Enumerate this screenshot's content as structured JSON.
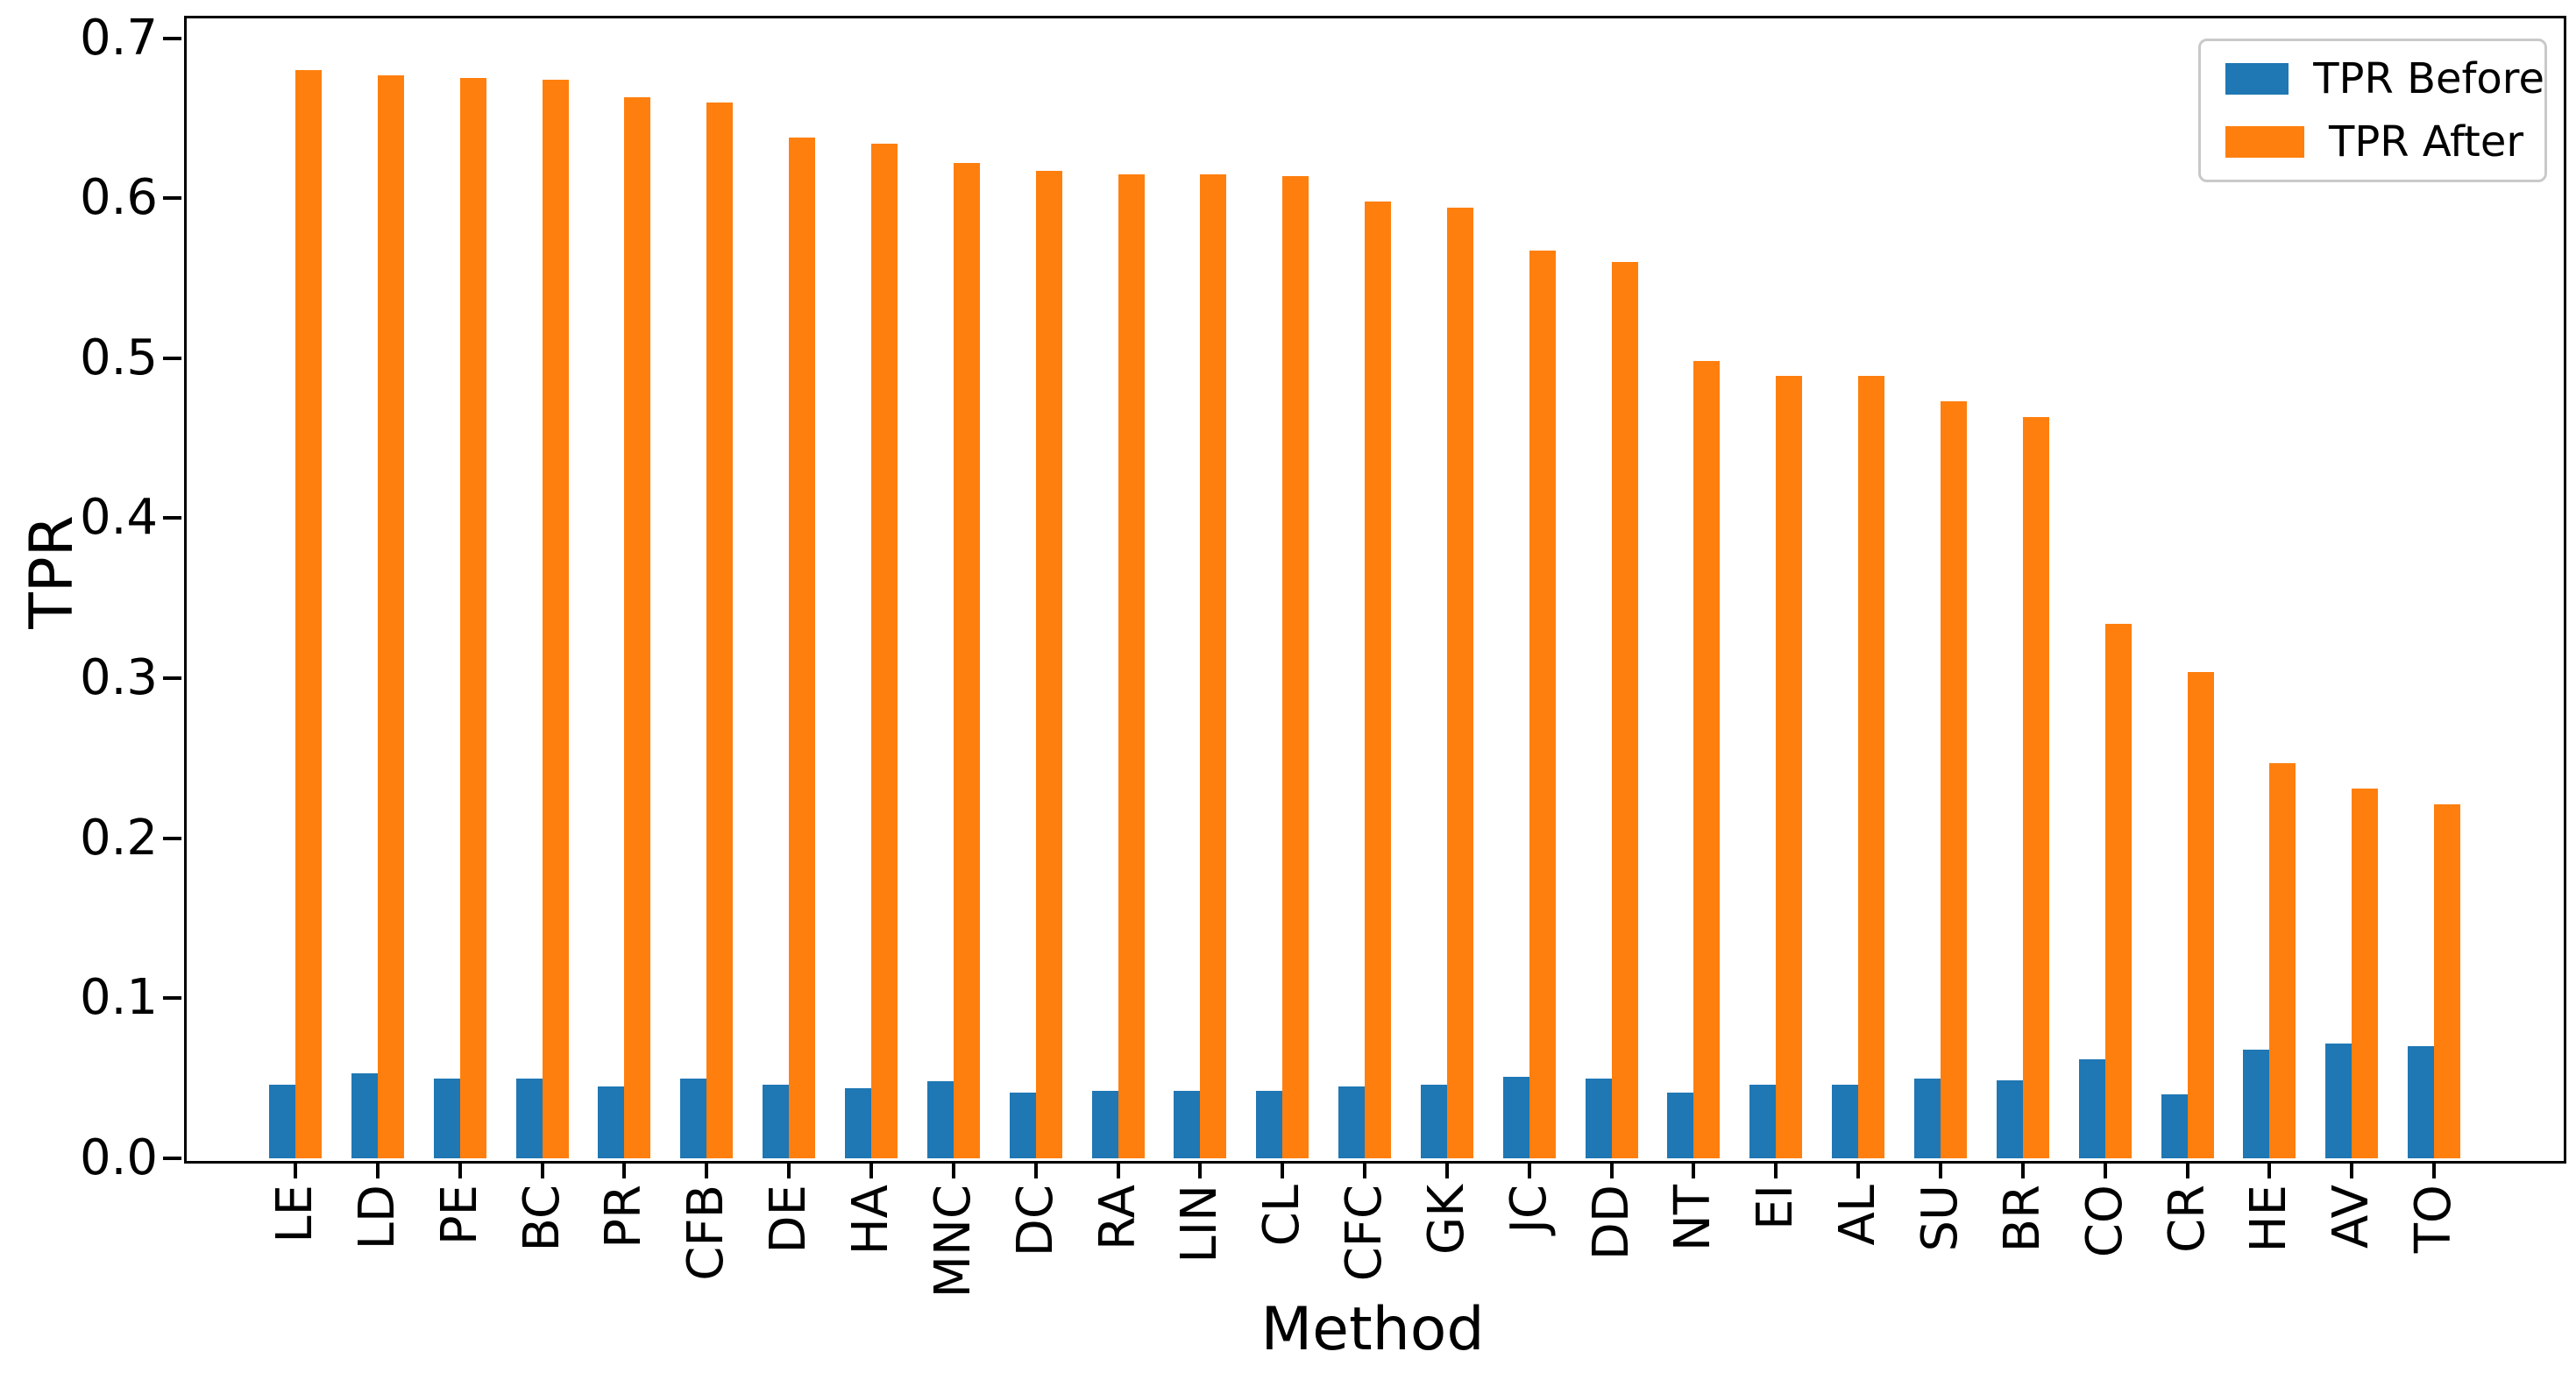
{
  "figure": {
    "background": "#ffffff",
    "text_color": "#000000",
    "spine_color": "#000000"
  },
  "legend": {
    "items": [
      {
        "label": "TPR Before",
        "color": "#1f77b4"
      },
      {
        "label": "TPR After",
        "color": "#ff7f0e"
      }
    ]
  },
  "chart_data": {
    "type": "bar",
    "title": "",
    "xlabel": "Method",
    "ylabel": "TPR",
    "categories": [
      "LE",
      "LD",
      "PE",
      "BC",
      "PR",
      "CFB",
      "DE",
      "HA",
      "MNC",
      "DC",
      "RA",
      "LIN",
      "CL",
      "CFC",
      "GK",
      "JC",
      "DD",
      "NT",
      "EI",
      "AL",
      "SU",
      "BR",
      "CO",
      "CR",
      "HE",
      "AV",
      "TO"
    ],
    "series": [
      {
        "name": "TPR Before",
        "color": "#1f77b4",
        "values": [
          0.046,
          0.053,
          0.05,
          0.05,
          0.045,
          0.05,
          0.046,
          0.044,
          0.048,
          0.041,
          0.042,
          0.042,
          0.042,
          0.045,
          0.046,
          0.051,
          0.05,
          0.041,
          0.046,
          0.046,
          0.05,
          0.049,
          0.062,
          0.04,
          0.068,
          0.072,
          0.07
        ]
      },
      {
        "name": "TPR After",
        "color": "#ff7f0e",
        "values": [
          0.68,
          0.677,
          0.675,
          0.674,
          0.663,
          0.66,
          0.638,
          0.634,
          0.622,
          0.617,
          0.615,
          0.615,
          0.614,
          0.598,
          0.594,
          0.567,
          0.56,
          0.498,
          0.489,
          0.489,
          0.473,
          0.463,
          0.334,
          0.304,
          0.247,
          0.231,
          0.221
        ]
      }
    ],
    "ylim": [
      0,
      0.714
    ],
    "yticks": [
      0.0,
      0.1,
      0.2,
      0.3,
      0.4,
      0.5,
      0.6,
      0.7
    ],
    "ytick_labels": [
      "0.0",
      "0.1",
      "0.2",
      "0.3",
      "0.4",
      "0.5",
      "0.6",
      "0.7"
    ],
    "grid": false,
    "legend_position": "upper right",
    "xtick_rotation": 90
  }
}
